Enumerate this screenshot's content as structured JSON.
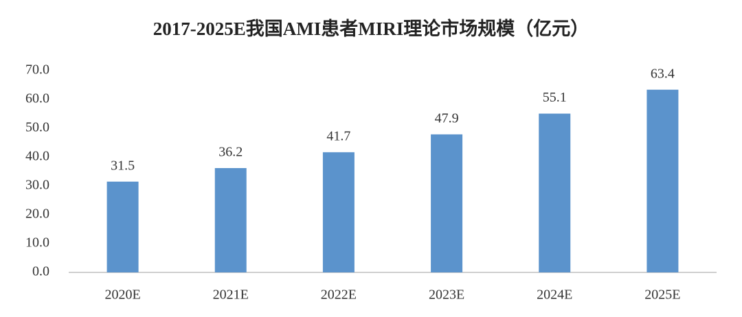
{
  "chart_data": {
    "type": "bar",
    "title": "2017-2025E我国AMI患者MIRI理论市场规模（亿元）",
    "categories": [
      "2020E",
      "2021E",
      "2022E",
      "2023E",
      "2024E",
      "2025E"
    ],
    "values": [
      31.5,
      36.2,
      41.7,
      47.9,
      55.1,
      63.4
    ],
    "color": "#5b93cc",
    "ylim": [
      0,
      70
    ],
    "yticks": [
      {
        "value": 0,
        "label": "0.0"
      },
      {
        "value": 10,
        "label": "10.0"
      },
      {
        "value": 20,
        "label": "20.0"
      },
      {
        "value": 30,
        "label": "30.0"
      },
      {
        "value": 40,
        "label": "40.0"
      },
      {
        "value": 50,
        "label": "50.0"
      },
      {
        "value": 60,
        "label": "60.0"
      },
      {
        "value": 70,
        "label": "70.0"
      }
    ],
    "grid": false
  }
}
